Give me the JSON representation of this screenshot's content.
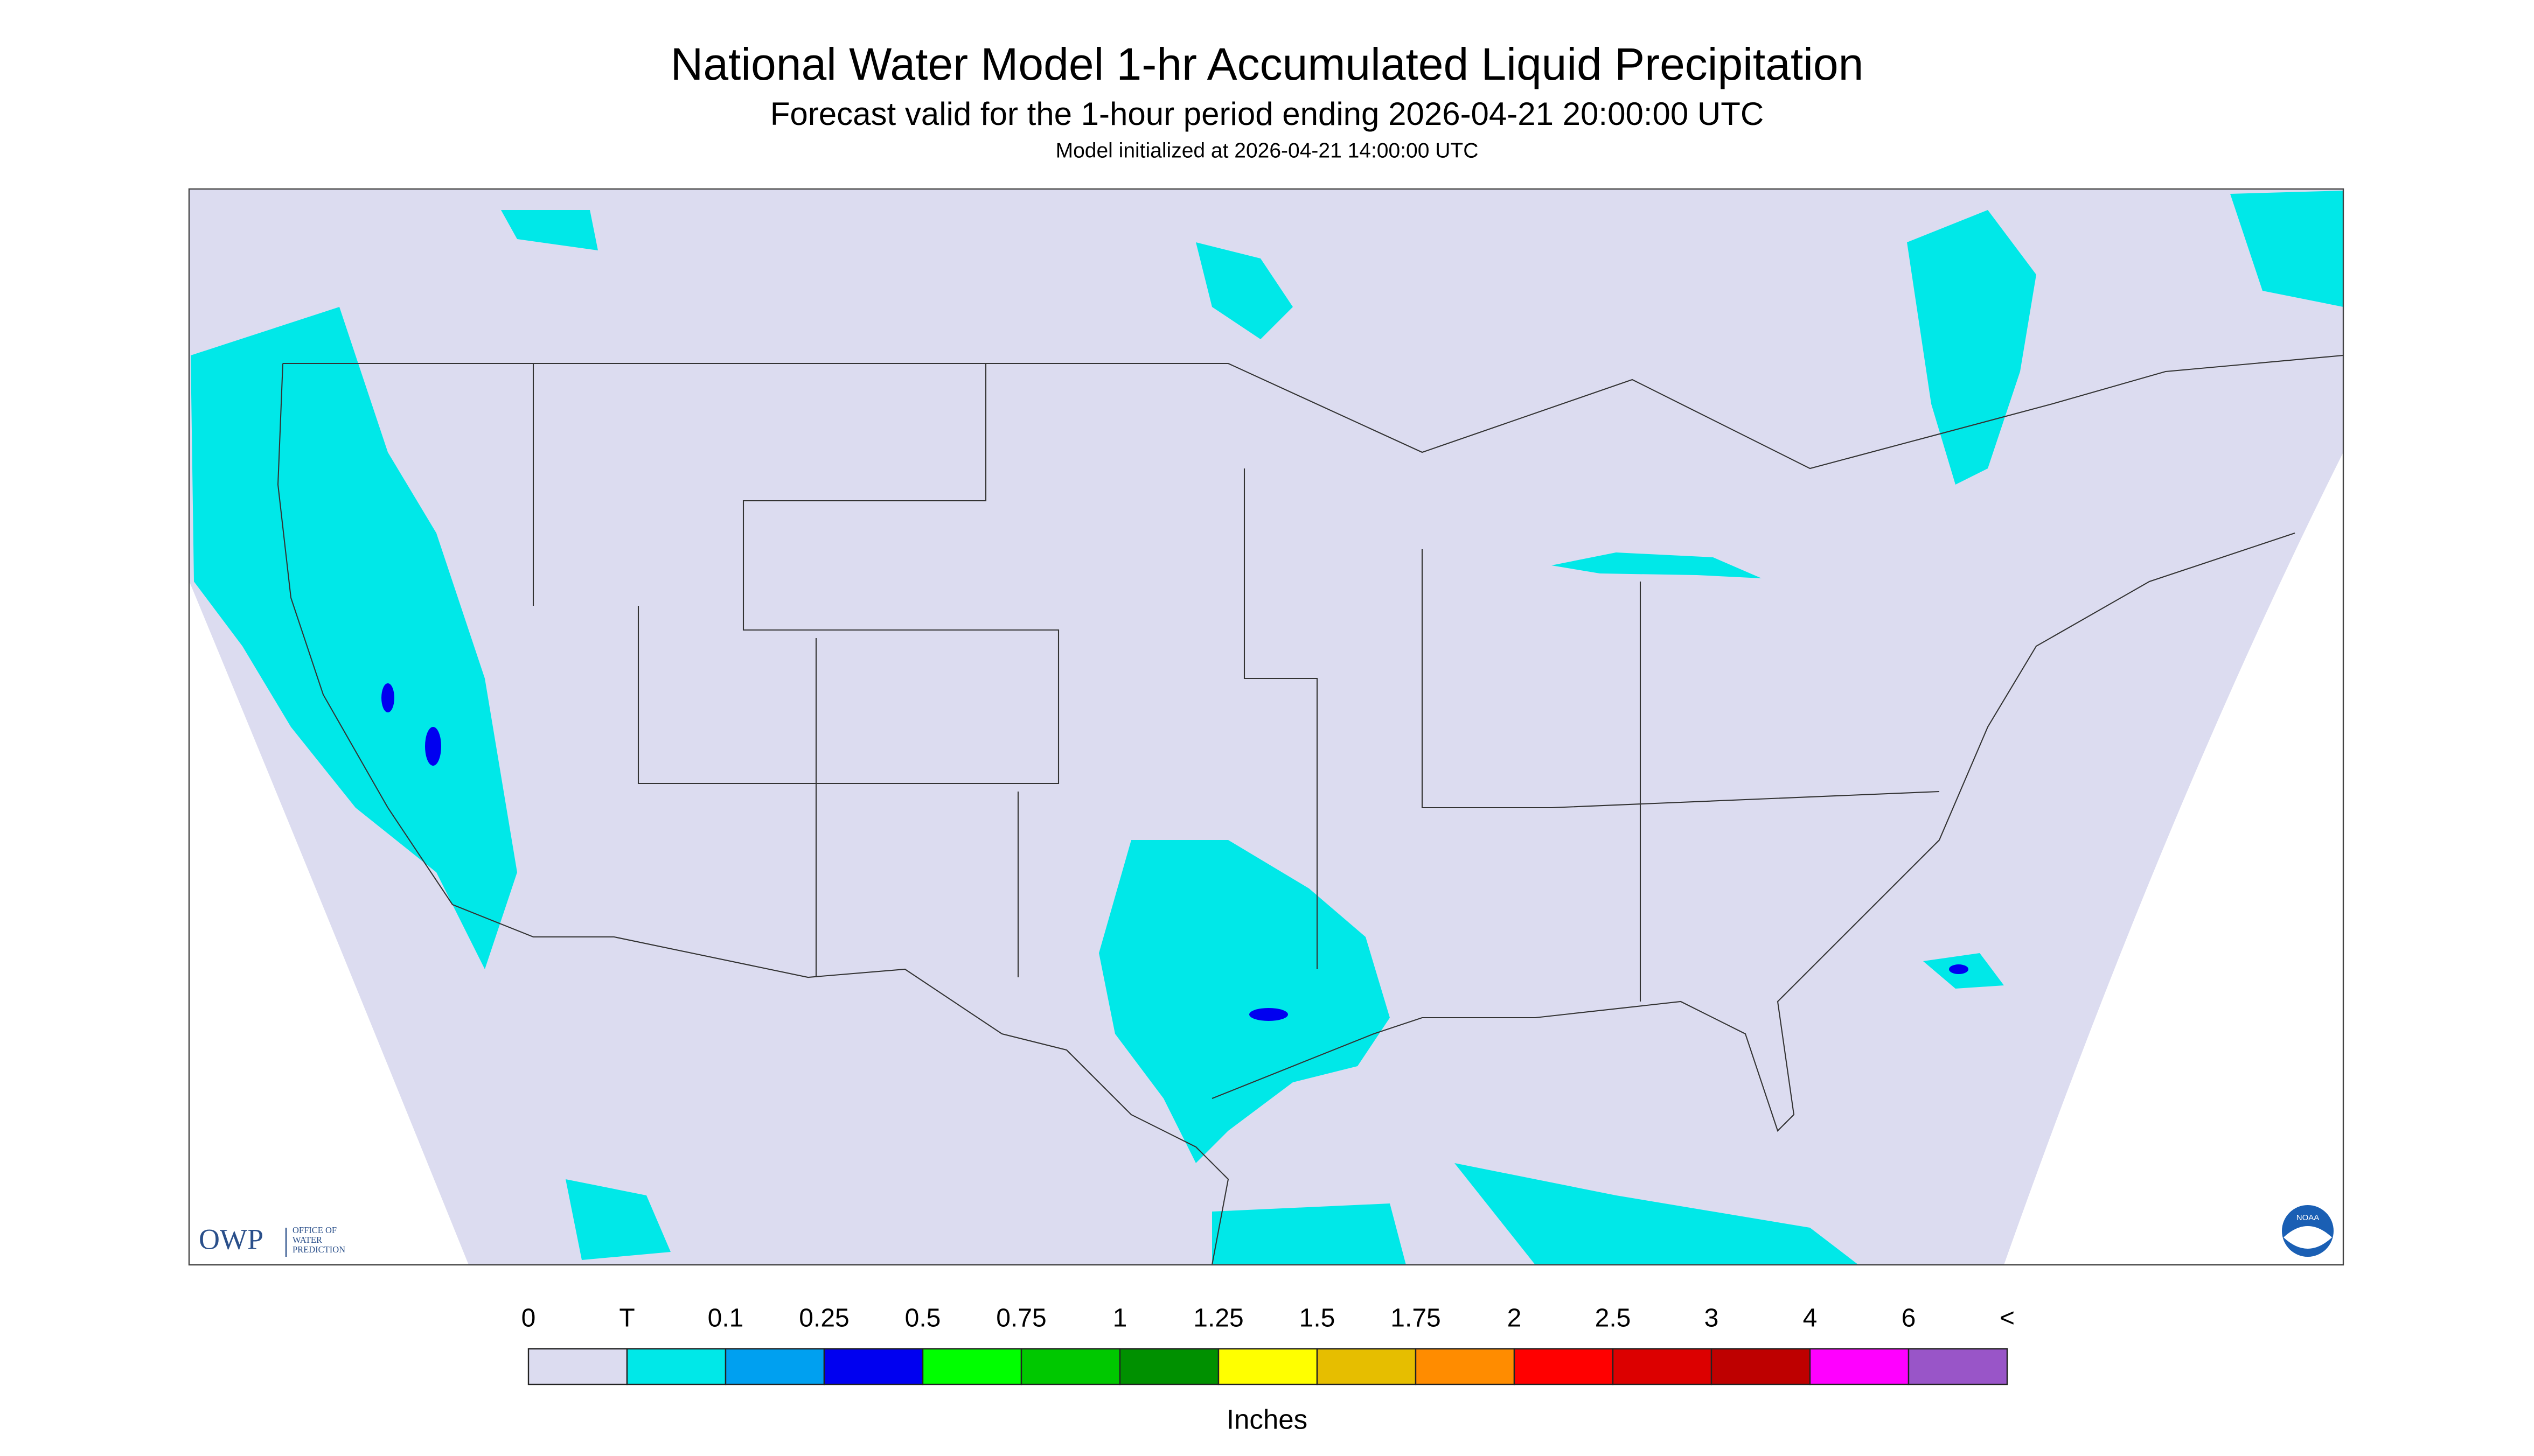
{
  "header": {
    "title": "National Water Model 1-hr Accumulated Liquid Precipitation",
    "subtitle": "Forecast valid for the 1-hour period ending 2026-04-21 20:00:00 UTC",
    "initialized": "Model initialized at 2026-04-21 14:00:00 UTC"
  },
  "logos": {
    "owp": "OWP",
    "owp_full": [
      "OFFICE OF",
      "WATER",
      "PREDICTION"
    ],
    "noaa": "NOAA"
  },
  "legend": {
    "labels": [
      "0",
      "T",
      "0.1",
      "0.25",
      "0.5",
      "0.75",
      "1",
      "1.25",
      "1.5",
      "1.75",
      "2",
      "2.5",
      "3",
      "4",
      "6",
      "<"
    ],
    "colors": [
      "#dcdcf0",
      "#00e8e8",
      "#00a0f0",
      "#0000f0",
      "#00ff00",
      "#00c800",
      "#009000",
      "#ffff00",
      "#e6be00",
      "#ff8c00",
      "#ff0000",
      "#dc0000",
      "#be0000",
      "#ff00ff",
      "#9955c8"
    ],
    "unit": "Inches"
  }
}
